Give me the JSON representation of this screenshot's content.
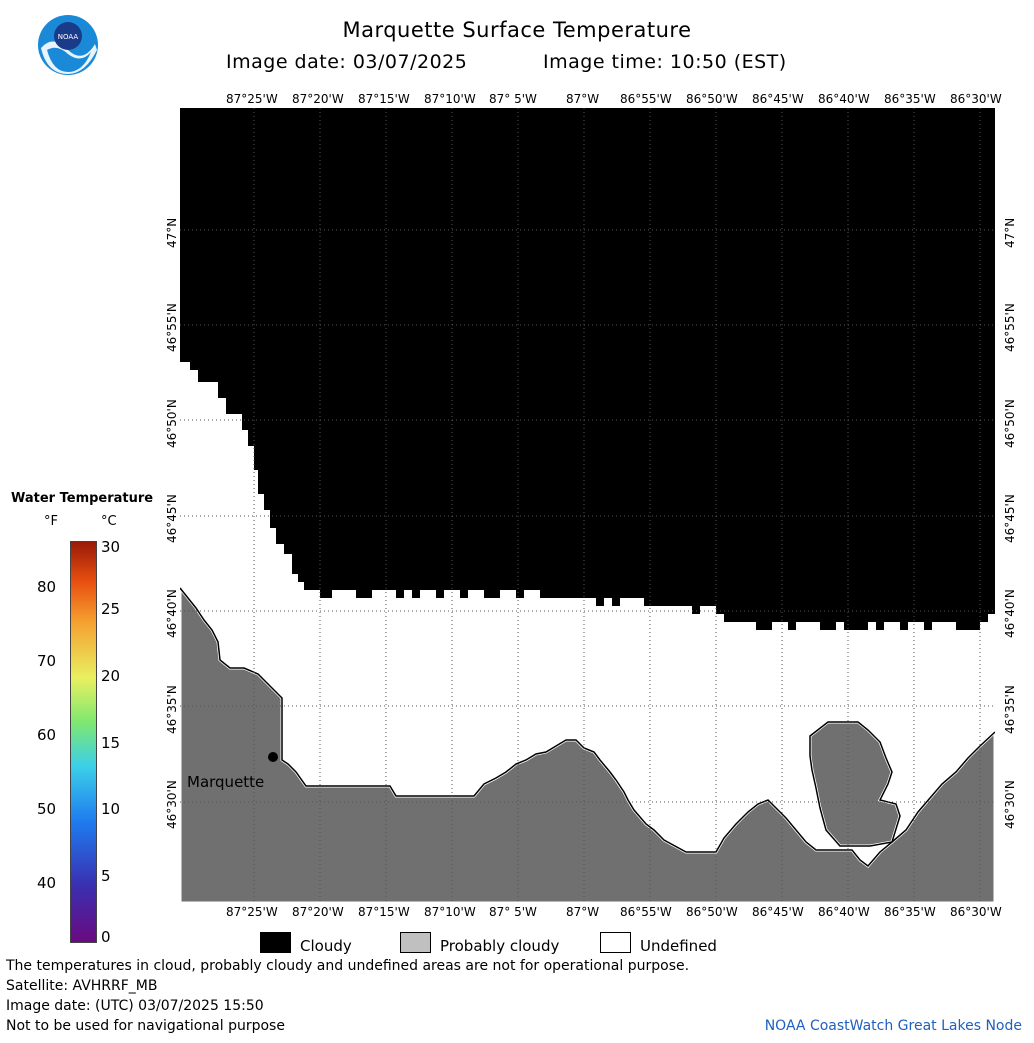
{
  "header": {
    "title": "Marquette Surface Temperature",
    "image_date": "Image date: 03/07/2025",
    "image_time": "Image time: 10:50 (EST)"
  },
  "logo": {
    "text": "NOAA"
  },
  "map": {
    "place_label": "Marquette",
    "lon_labels": [
      "87°25'W",
      "87°20'W",
      "87°15'W",
      "87°10'W",
      "87° 5'W",
      "87°W",
      "86°55'W",
      "86°50'W",
      "86°45'W",
      "86°40'W",
      "86°35'W",
      "86°30'W"
    ],
    "lat_labels": [
      "47°N",
      "46°55'N",
      "46°50'N",
      "46°45'N",
      "46°40'N",
      "46°35'N",
      "46°30'N"
    ],
    "colors": {
      "cloudy": "#000000",
      "probably_cloudy": "#707070",
      "undefined": "#ffffff"
    }
  },
  "scale": {
    "title": "Water Temperature",
    "unit_f": "°F",
    "unit_c": "°C",
    "f_ticks": [
      "80",
      "70",
      "60",
      "50",
      "40"
    ],
    "c_ticks": [
      "30",
      "25",
      "20",
      "15",
      "10",
      "5",
      "0"
    ]
  },
  "legend": {
    "cloudy": "Cloudy",
    "probably_cloudy": "Probably cloudy",
    "undefined": "Undefined"
  },
  "footer": {
    "note": "The temperatures in cloud, probably cloudy and undefined areas are not for operational purpose.",
    "satellite": "Satellite: AVHRRF_MB",
    "utc_date": "Image date: (UTC) 03/07/2025  15:50",
    "nav_warning": "Not to be used for navigational purpose",
    "credit": "NOAA CoastWatch Great Lakes Node"
  }
}
